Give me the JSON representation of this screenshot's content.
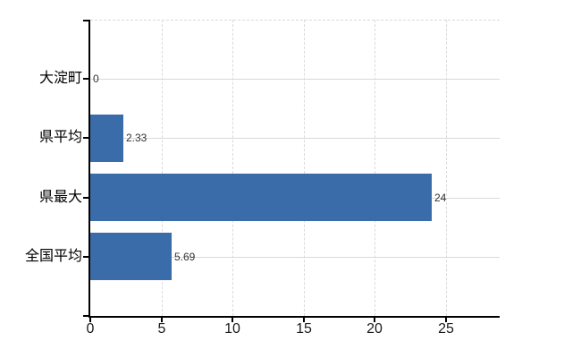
{
  "chart_data": {
    "type": "bar",
    "orientation": "horizontal",
    "title": "",
    "categories": [
      "大淀町",
      "県平均",
      "県最大",
      "全国平均"
    ],
    "values": [
      0,
      2.33,
      24,
      5.69
    ],
    "value_labels": [
      "0",
      "2.33",
      "24",
      "5.69"
    ],
    "x_ticks": [
      0,
      5,
      10,
      15,
      20,
      25
    ],
    "x_tick_labels": [
      "0",
      "5",
      "10",
      "15",
      "20",
      "25"
    ],
    "xlim": [
      0,
      28.8
    ],
    "legend_position": "none",
    "grid": {
      "horizontal_style": "solid",
      "vertical_style": "dashed",
      "top_border_style": "dashed"
    },
    "colors": {
      "bar": "#3b6caa",
      "grid_horizontal": "#d6dbd6",
      "grid_vertical": "#dadada",
      "axis": "#000000",
      "category_label": "#000000",
      "tick_label": "#1a1a1a",
      "value_label": "#333333",
      "background": "#ffffff"
    }
  }
}
